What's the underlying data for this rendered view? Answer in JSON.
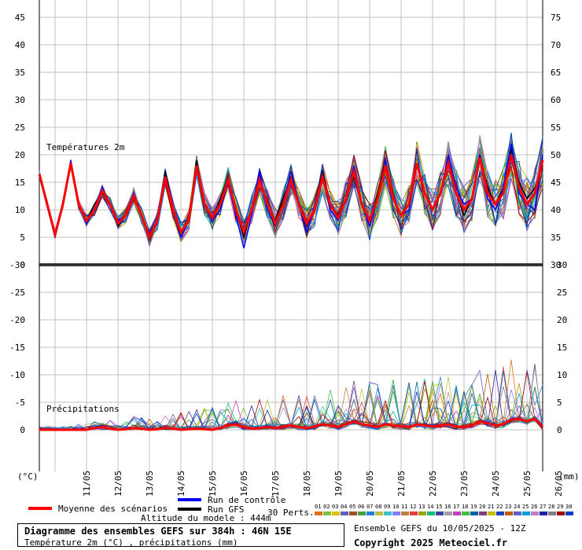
{
  "chart_data": [
    {
      "type": "line",
      "title": "Températures 2m",
      "unit_label": "(°C)",
      "ylim": [
        0,
        45
      ],
      "y_ticks_left": [
        0,
        5,
        10,
        15,
        20,
        25,
        30,
        35,
        40,
        45
      ],
      "x_tick_labels": [
        "11/05",
        "12/05",
        "13/05",
        "14/05",
        "15/05",
        "16/05",
        "17/05",
        "18/05",
        "19/05",
        "20/05",
        "21/05",
        "22/05",
        "23/05",
        "24/05",
        "25/05",
        "26/05"
      ],
      "x": [
        0,
        6,
        12,
        18,
        24,
        30,
        36,
        42,
        48,
        54,
        60,
        66,
        72,
        78,
        84,
        90,
        96,
        102,
        108,
        114,
        120,
        126,
        132,
        138,
        144,
        150,
        156,
        162,
        168,
        174,
        180,
        186,
        192,
        198,
        204,
        210,
        216,
        222,
        228,
        234,
        240,
        246,
        252,
        258,
        264,
        270,
        276,
        282,
        288,
        294,
        300,
        306,
        312,
        318,
        324,
        330,
        336,
        342,
        348,
        354,
        360,
        366,
        372,
        378,
        384
      ],
      "x_unit": "hours from 10/05/2025 12Z",
      "series": [
        {
          "name": "Moyenne des scénarios",
          "color": "#ff0000",
          "values": [
            16.5,
            11,
            5.5,
            11,
            18.5,
            11,
            8,
            10,
            13.5,
            11,
            7.5,
            9,
            12.5,
            9,
            5,
            8,
            16,
            10,
            6,
            8,
            18,
            11,
            8.5,
            11,
            15.5,
            10,
            6,
            10,
            15.5,
            11,
            7.5,
            11,
            15.5,
            11,
            7.5,
            10,
            16,
            11,
            8.5,
            12,
            17,
            11,
            8,
            12,
            18,
            12,
            9,
            11,
            18.5,
            13,
            10,
            13,
            18.5,
            13,
            10,
            12,
            19.5,
            13,
            11,
            13,
            20,
            14,
            11,
            13,
            19
          ]
        },
        {
          "name": "Run de contrôle",
          "color": "#0000ff",
          "values": [
            16.5,
            11,
            5.5,
            11,
            19,
            11,
            7.5,
            10,
            14,
            11,
            8,
            9,
            13,
            9,
            5.5,
            8,
            16,
            10,
            5,
            8,
            18,
            11,
            8,
            10,
            15,
            9,
            3,
            9,
            17,
            10,
            7,
            11,
            17,
            11,
            6,
            10,
            16,
            10,
            8,
            12,
            18,
            11,
            7,
            12,
            19,
            12,
            9,
            10,
            18,
            13,
            10,
            13,
            20,
            14,
            11,
            12,
            20,
            12,
            10,
            14,
            22,
            13,
            11,
            10,
            20
          ]
        },
        {
          "name": "Run GFS",
          "color": "#000000",
          "values": [
            16.5,
            11,
            5.5,
            11,
            18.5,
            11,
            8,
            11,
            13,
            11,
            7,
            9,
            12,
            9,
            4.5,
            8,
            17,
            10,
            6,
            8,
            19,
            11,
            8,
            12,
            16,
            10,
            5,
            10,
            16,
            11,
            8,
            12,
            16,
            11,
            7,
            10,
            17,
            11,
            9,
            12,
            16,
            11,
            8,
            13,
            19,
            12,
            9,
            11,
            18,
            13,
            10,
            13,
            19,
            13,
            9,
            12,
            20,
            14,
            11,
            14,
            21,
            15,
            12,
            14,
            18
          ]
        }
      ]
    },
    {
      "type": "line",
      "title": "Précipitations",
      "unit_label": "(mm)",
      "ylim": [
        0,
        30
      ],
      "y_ticks_right": [
        0,
        5,
        10,
        15,
        20,
        25,
        30
      ],
      "y_ticks_left": [
        -30,
        -25,
        -20,
        -15,
        -10,
        -5,
        0
      ],
      "temperature_axis_right": [
        30,
        35,
        40,
        45,
        50,
        55,
        60,
        65,
        70,
        75
      ],
      "series": [
        {
          "name": "Moyenne des scénarios",
          "color": "#ff0000",
          "values": [
            0,
            0,
            0,
            0,
            0,
            0,
            0,
            0.3,
            0.5,
            0.2,
            0,
            0.1,
            0.3,
            0.2,
            0,
            0.1,
            0.3,
            0.2,
            0,
            0.1,
            0.2,
            0.1,
            0,
            0.3,
            0.8,
            1,
            0.5,
            0.2,
            0.3,
            0.5,
            0.3,
            0.5,
            0.8,
            0.5,
            0.3,
            0.6,
            1,
            0.8,
            0.5,
            1,
            1.5,
            1,
            0.8,
            0.5,
            1,
            0.8,
            0.6,
            0.5,
            1,
            0.8,
            0.6,
            0.8,
            1,
            0.6,
            0.5,
            0.8,
            1.5,
            1.2,
            0.8,
            1,
            1.8,
            2,
            1.5,
            2,
            0.5
          ]
        }
      ]
    }
  ],
  "header": {
    "temp_label": "Températures 2m",
    "precip_label": "Précipitations",
    "unit_left": "(°C)",
    "unit_right": "(mm)"
  },
  "legend": {
    "mean": "Moyenne des scénarios",
    "control": "Run de contrôle",
    "gfs": "Run GFS",
    "perts": "30 Perts.",
    "altitude": "Altitude du modele : 444m",
    "pert_numbers": [
      "01",
      "02",
      "03",
      "04",
      "05",
      "06",
      "07",
      "08",
      "09",
      "10",
      "11",
      "12",
      "13",
      "14",
      "15",
      "16",
      "17",
      "18",
      "19",
      "20",
      "21",
      "22",
      "23",
      "24",
      "25",
      "26",
      "27",
      "28",
      "29",
      "30"
    ],
    "pert_colors": [
      "#e07020",
      "#80c040",
      "#e0c000",
      "#6060c0",
      "#a05020",
      "#40a040",
      "#2080e0",
      "#c0c040",
      "#40c0c0",
      "#8080ff",
      "#c08040",
      "#e04040",
      "#a0a000",
      "#00c080",
      "#4040a0",
      "#a0a0a0",
      "#c040c0",
      "#40c040",
      "#0060a0",
      "#804080",
      "#c0c000",
      "#2040c0",
      "#c06000",
      "#6060c0",
      "#00a0e0",
      "#c080c0",
      "#2020a0",
      "#808080",
      "#a00000",
      "#0040c0"
    ]
  },
  "footer": {
    "title": "Diagramme des ensembles GEFS sur 384h : 46N 15E",
    "subtitle": "Température 2m (°C) , précipitations (mm)",
    "run": "Ensemble GEFS du 10/05/2025 - 12Z",
    "copyright": "Copyright 2025 Meteociel.fr"
  }
}
